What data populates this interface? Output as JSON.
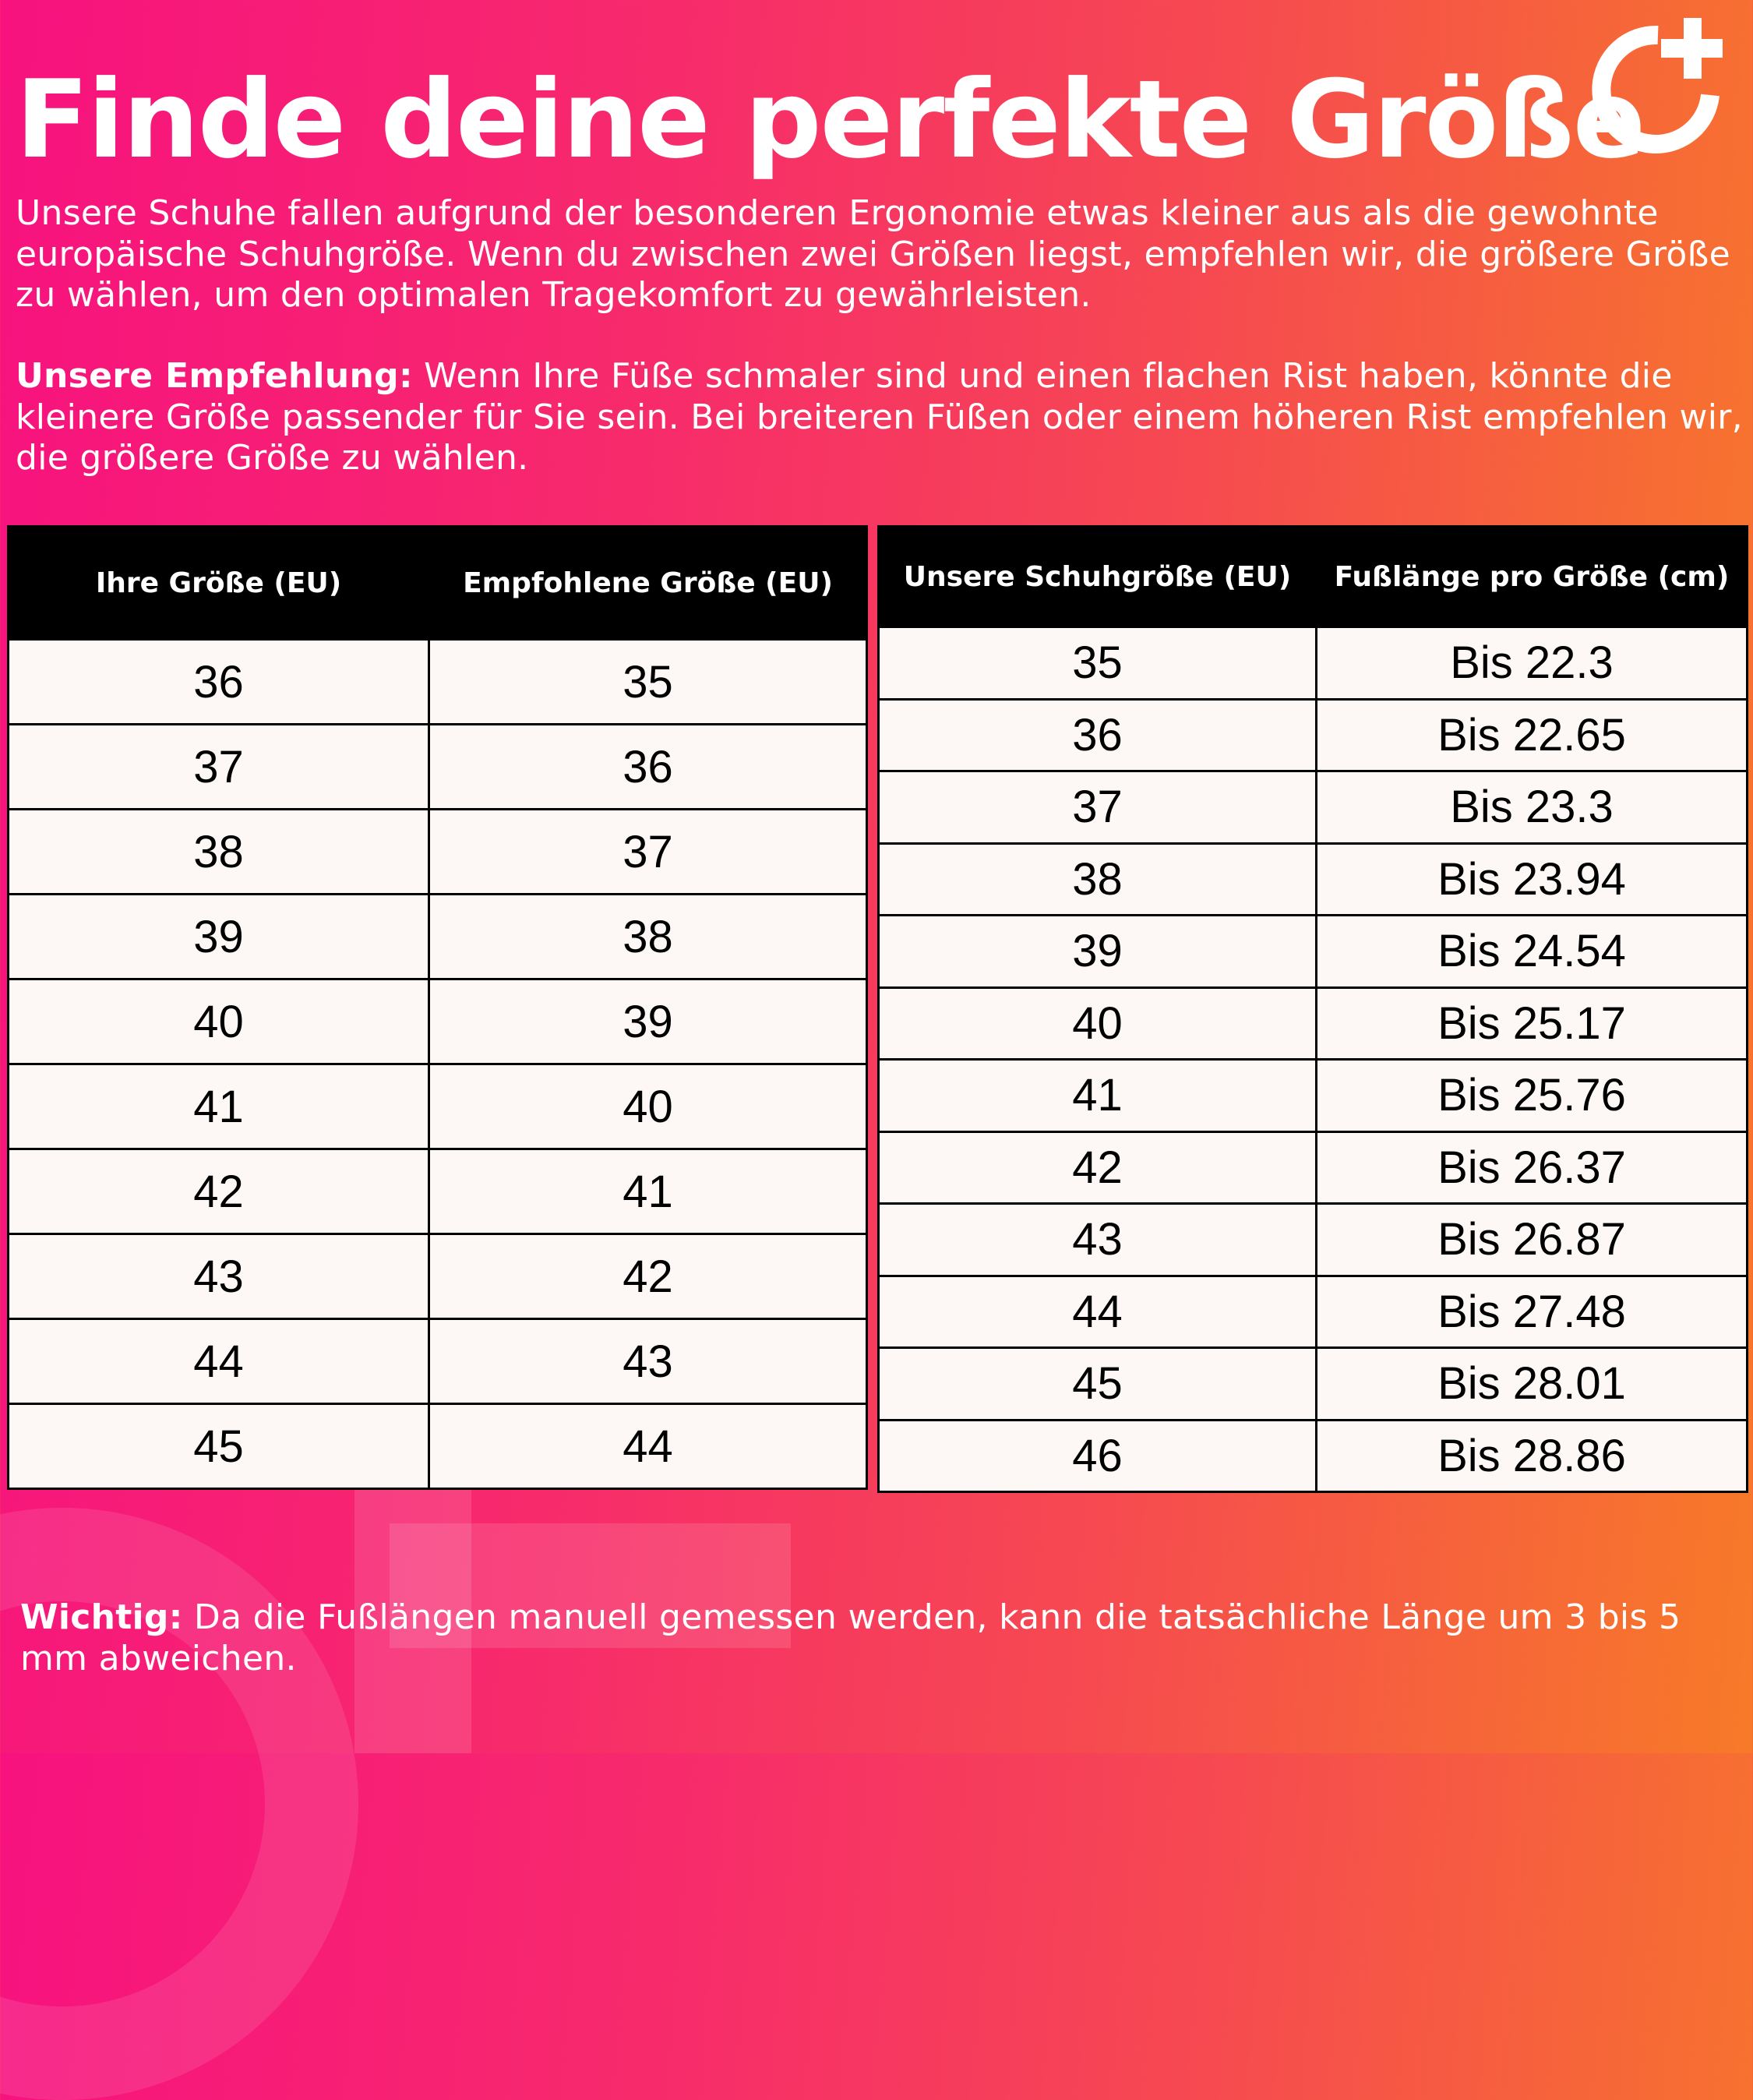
{
  "title": "Finde deine perfekte Größe",
  "intro": "Unsere Schuhe fallen aufgrund der besonderen Ergonomie etwas kleiner aus als die gewohnte europäische Schuhgröße. Wenn du zwischen zwei Größen liegst, empfehlen wir, die größere Größe zu wählen, um den optimalen Tragekomfort zu gewährleisten.",
  "recommendation": {
    "label": "Unsere Empfehlung:",
    "text": " Wenn Ihre Füße schmaler sind und einen flachen Rist haben, könnte die kleinere Größe passender für Sie sein. Bei breiteren Füßen oder einem höheren Rist empfehlen wir, die größere Größe zu wählen."
  },
  "conversion_table": {
    "headers": [
      "Ihre Größe (EU)",
      "Empfohlene Größe (EU)"
    ],
    "rows": [
      [
        "36",
        "35"
      ],
      [
        "37",
        "36"
      ],
      [
        "38",
        "37"
      ],
      [
        "39",
        "38"
      ],
      [
        "40",
        "39"
      ],
      [
        "41",
        "40"
      ],
      [
        "42",
        "41"
      ],
      [
        "43",
        "42"
      ],
      [
        "44",
        "43"
      ],
      [
        "45",
        "44"
      ]
    ]
  },
  "length_table": {
    "headers": [
      "Unsere Schuhgröße (EU)",
      "Fußlänge pro Größe (cm)"
    ],
    "rows": [
      [
        "35",
        "Bis 22.3"
      ],
      [
        "36",
        "Bis 22.65"
      ],
      [
        "37",
        "Bis 23.3"
      ],
      [
        "38",
        "Bis 23.94"
      ],
      [
        "39",
        "Bis 24.54"
      ],
      [
        "40",
        "Bis 25.17"
      ],
      [
        "41",
        "Bis 25.76"
      ],
      [
        "42",
        "Bis 26.37"
      ],
      [
        "43",
        "Bis 26.87"
      ],
      [
        "44",
        "Bis 27.48"
      ],
      [
        "45",
        "Bis 28.01"
      ],
      [
        "46",
        "Bis 28.86"
      ]
    ]
  },
  "note": {
    "label": "Wichtig:",
    "text": " Da die Fußlängen manuell gemessen werden, kann die tatsächliche Länge um 3 bis 5 mm abweichen."
  },
  "logo": {
    "icon": "circle-plus-logo",
    "color": "#ffffff"
  },
  "colors": {
    "gradient_start": "#f7127f",
    "gradient_end": "#f77a28",
    "header_bg": "#000000",
    "cell_bg": "#fdf8f5"
  }
}
